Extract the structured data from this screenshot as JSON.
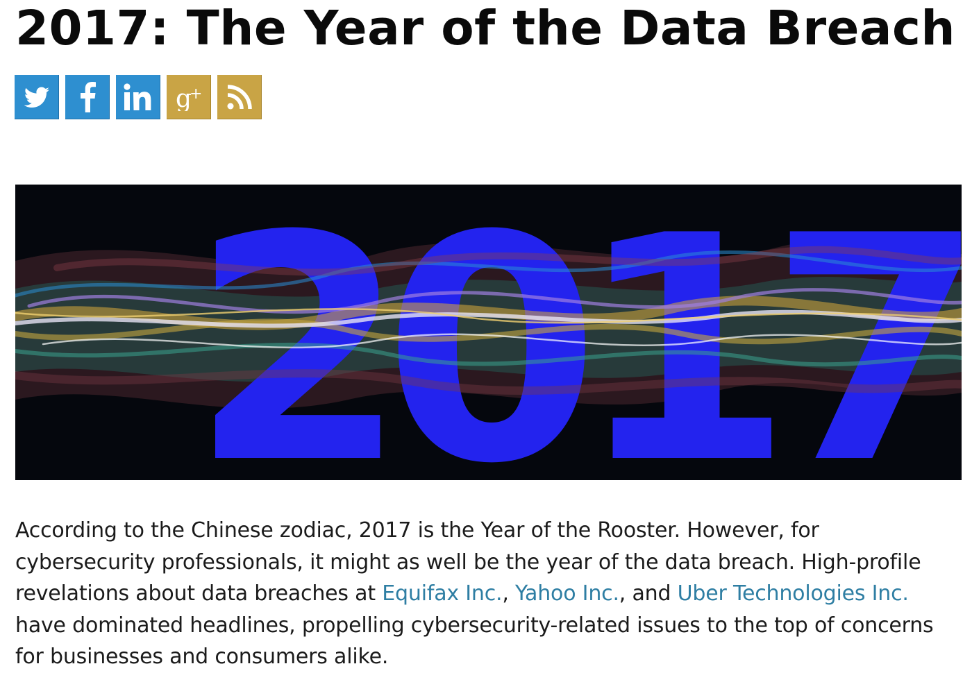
{
  "article": {
    "title": "2017: The Year of the Data Breach",
    "share_buttons": [
      {
        "name": "twitter",
        "icon": "twitter-bird-icon",
        "color": "#2e8fd0"
      },
      {
        "name": "facebook",
        "icon": "facebook-f-icon",
        "color": "#2e8fd0"
      },
      {
        "name": "linkedin",
        "icon": "linkedin-in-icon",
        "color": "#2e8fd0"
      },
      {
        "name": "google-plus",
        "icon": "google-plus-icon",
        "color": "#c9a445"
      },
      {
        "name": "rss",
        "icon": "rss-feed-icon",
        "color": "#c9a445"
      }
    ],
    "hero": {
      "text": "2017",
      "digit_color": "#2323ee",
      "background": "#05070d"
    },
    "paragraph": {
      "part1": "According to the Chinese zodiac, 2017 is the Year of the Rooster. However, for cybersecurity professionals, it might as well be the year of the data breach. High-profile revelations about data breaches at ",
      "link1": "Equifax Inc.",
      "sep1": ", ",
      "link2": "Yahoo Inc.",
      "sep2": ", and ",
      "link3": "Uber Technologies Inc.",
      "part2": " have dominated headlines, propelling cybersecurity-related issues to the top of concerns for businesses and consumers alike.",
      "link_color": "#2e7ea3"
    }
  }
}
